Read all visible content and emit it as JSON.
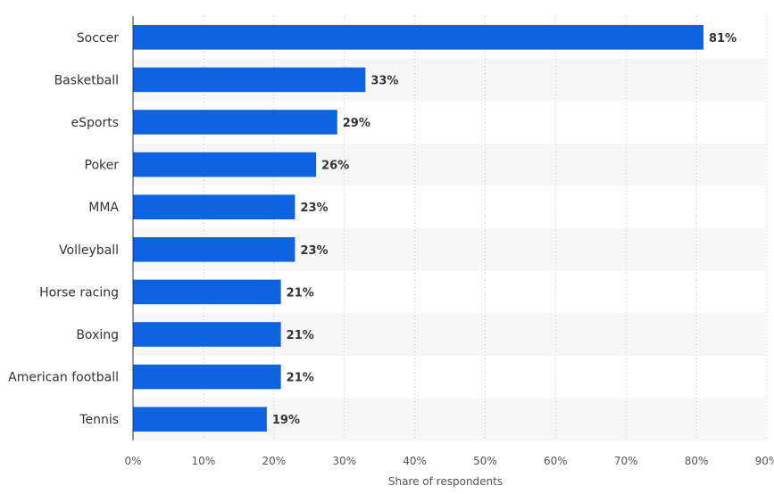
{
  "chart_data": {
    "type": "bar",
    "orientation": "horizontal",
    "categories": [
      "Soccer",
      "Basketball",
      "eSports",
      "Poker",
      "MMA",
      "Volleyball",
      "Horse racing",
      "Boxing",
      "American football",
      "Tennis"
    ],
    "values": [
      81,
      33,
      29,
      26,
      23,
      23,
      21,
      21,
      21,
      19
    ],
    "value_labels": [
      "81%",
      "33%",
      "29%",
      "26%",
      "23%",
      "23%",
      "21%",
      "21%",
      "21%",
      "19%"
    ],
    "xlabel": "Share of respondents",
    "xlim": [
      0,
      90
    ],
    "x_ticks": [
      0,
      10,
      20,
      30,
      40,
      50,
      60,
      70,
      80,
      90
    ],
    "x_tick_labels": [
      "0%",
      "10%",
      "20%",
      "30%",
      "40%",
      "50%",
      "60%",
      "70%",
      "80%",
      "90%"
    ],
    "grid": "vertical-dotted",
    "bar_color": "#0d63e0",
    "band_color": "#f7f7f7"
  }
}
